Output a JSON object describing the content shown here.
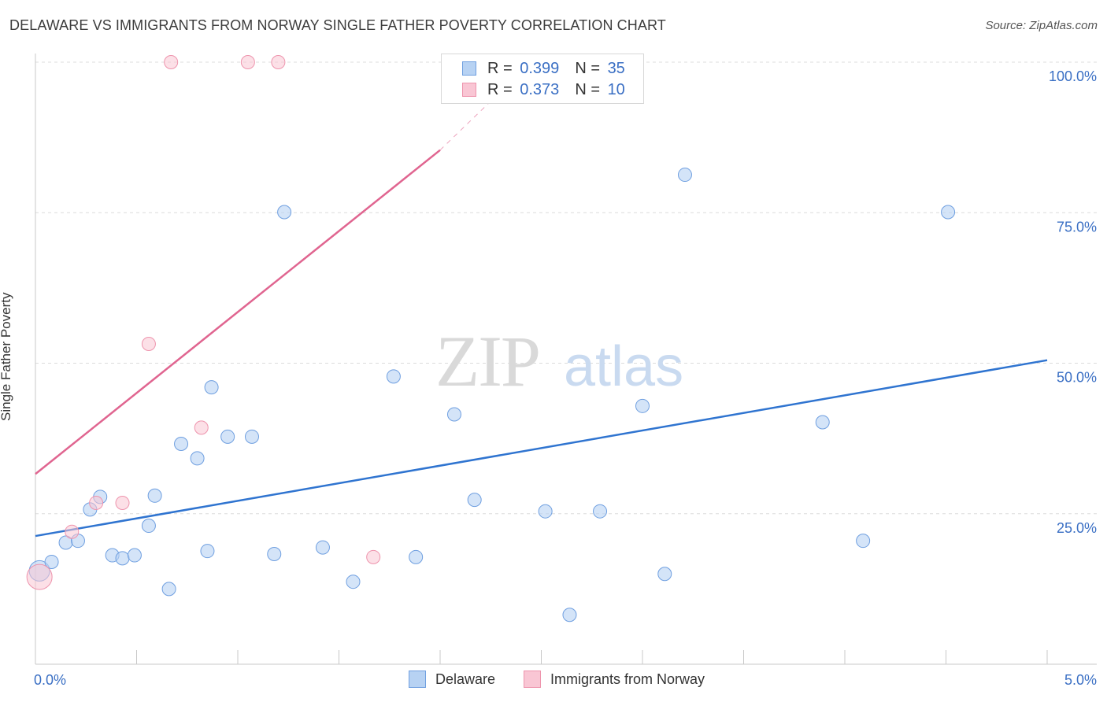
{
  "header": {
    "title": "DELAWARE VS IMMIGRANTS FROM NORWAY SINGLE FATHER POVERTY CORRELATION CHART",
    "source": "Source: ZipAtlas.com"
  },
  "watermark": {
    "part1": "ZIP",
    "part2": "atlas"
  },
  "legend": {
    "r_label": "R =",
    "n_label": "N =",
    "rows": [
      {
        "series": "Delaware",
        "r": "0.399",
        "n": "35",
        "fill": "#b7d2f3",
        "stroke": "#6f9fe0"
      },
      {
        "series": "Immigrants from Norway",
        "r": "0.373",
        "n": "10",
        "fill": "#f9c6d4",
        "stroke": "#ee94ad"
      }
    ]
  },
  "colors": {
    "blue_line": "#2f74d0",
    "pink_line": "#e06590",
    "grid": "#dcdcdc",
    "tick_text": "#3a6fc4"
  },
  "chart_data": {
    "type": "scatter",
    "title": "DELAWARE VS IMMIGRANTS FROM NORWAY SINGLE FATHER POVERTY CORRELATION CHART",
    "xlabel": "",
    "ylabel": "Single Father Poverty",
    "xlim": [
      0,
      5
    ],
    "ylim": [
      0,
      100
    ],
    "x_tick_labels": [
      {
        "value": 0,
        "label": "0.0%"
      },
      {
        "value": 5,
        "label": "5.0%"
      }
    ],
    "y_tick_labels": [
      {
        "value": 25,
        "label": "25.0%"
      },
      {
        "value": 50,
        "label": "50.0%"
      },
      {
        "value": 75,
        "label": "75.0%"
      },
      {
        "value": 100,
        "label": "100.0%"
      }
    ],
    "grid": true,
    "legend_position": "top-center",
    "series": [
      {
        "name": "Delaware",
        "points": [
          [
            0.02,
            15.5
          ],
          [
            0.08,
            17.0
          ],
          [
            0.15,
            20.2
          ],
          [
            0.21,
            20.5
          ],
          [
            0.27,
            25.7
          ],
          [
            0.32,
            27.8
          ],
          [
            0.38,
            18.1
          ],
          [
            0.43,
            17.6
          ],
          [
            0.49,
            18.1
          ],
          [
            0.56,
            23.0
          ],
          [
            0.59,
            28.0
          ],
          [
            0.66,
            12.5
          ],
          [
            0.72,
            36.6
          ],
          [
            0.8,
            34.2
          ],
          [
            0.85,
            18.8
          ],
          [
            0.87,
            46.0
          ],
          [
            0.95,
            37.8
          ],
          [
            1.07,
            37.8
          ],
          [
            1.18,
            18.3
          ],
          [
            1.23,
            75.1
          ],
          [
            1.42,
            19.4
          ],
          [
            1.57,
            13.7
          ],
          [
            1.77,
            47.8
          ],
          [
            1.88,
            17.8
          ],
          [
            2.07,
            41.5
          ],
          [
            2.17,
            27.3
          ],
          [
            2.52,
            25.4
          ],
          [
            2.64,
            8.2
          ],
          [
            2.79,
            25.4
          ],
          [
            3.0,
            42.9
          ],
          [
            3.11,
            15.0
          ],
          [
            3.21,
            81.3
          ],
          [
            3.89,
            40.2
          ],
          [
            4.09,
            20.5
          ],
          [
            4.51,
            75.1
          ]
        ],
        "trend": {
          "x": [
            0,
            5
          ],
          "y": [
            21.3,
            50.5
          ]
        }
      },
      {
        "name": "Immigrants from Norway",
        "points": [
          [
            0.02,
            14.5
          ],
          [
            0.18,
            22.0
          ],
          [
            0.3,
            26.8
          ],
          [
            0.43,
            26.8
          ],
          [
            0.56,
            53.2
          ],
          [
            0.82,
            39.3
          ],
          [
            1.67,
            17.8
          ],
          [
            0.67,
            100.0
          ],
          [
            1.05,
            100.0
          ],
          [
            1.2,
            100.0
          ]
        ],
        "trend": {
          "x": [
            0,
            2.0
          ],
          "y": [
            31.6,
            85.4
          ],
          "dashed_to": {
            "x": 2.45,
            "y": 100.0
          }
        }
      }
    ]
  },
  "bottom_legend": [
    {
      "label": "Delaware"
    },
    {
      "label": "Immigrants from Norway"
    }
  ]
}
